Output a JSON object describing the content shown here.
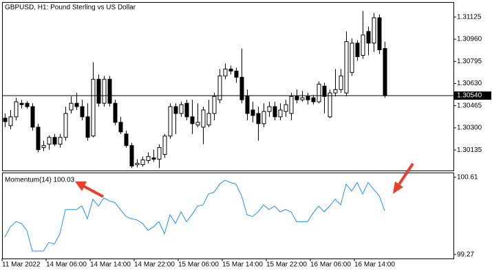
{
  "chart_data": [
    {
      "type": "candlestick",
      "title": "GBPUSD, H1:  Pound Sterling vs US Dollar",
      "categories": [
        "11 Mar 2022",
        null,
        null,
        null,
        null,
        null,
        null,
        null,
        "14 Mar 06:00",
        null,
        null,
        null,
        null,
        null,
        null,
        null,
        "14 Mar 14:00",
        null,
        null,
        null,
        null,
        null,
        null,
        null,
        "14 Mar 22:00",
        null,
        null,
        null,
        null,
        null,
        null,
        null,
        "15 Mar 06:00",
        null,
        null,
        null,
        null,
        null,
        null,
        null,
        "15 Mar 14:00",
        null,
        null,
        null,
        null,
        null,
        null,
        null,
        "15 Mar 22:00",
        null,
        null,
        null,
        null,
        null,
        null,
        null,
        "16 Mar 06:00",
        null,
        null,
        null,
        null,
        null,
        null,
        null,
        "16 Mar 14:00",
        null,
        null,
        null,
        null,
        null
      ],
      "open": [
        1.30372,
        1.30316,
        1.30382,
        1.30483,
        1.30483,
        1.30458,
        1.30305,
        1.30153,
        1.30178,
        1.30229,
        1.30178,
        1.30229,
        1.30433,
        1.30483,
        1.30458,
        1.30382,
        1.30239,
        1.30662,
        1.30483,
        1.30662,
        1.30483,
        1.30341,
        1.30254,
        1.30168,
        1.30025,
        1.30025,
        1.30056,
        1.30076,
        1.30066,
        1.30102,
        1.30239,
        1.30458,
        1.30407,
        1.30483,
        1.30382,
        1.30321,
        1.30305,
        1.30321,
        1.30407,
        1.30509,
        1.30687,
        1.30738,
        1.30723,
        1.30677,
        1.30534,
        1.30433,
        1.30407,
        1.30331,
        1.30422,
        1.30458,
        1.30382,
        1.30422,
        1.30407,
        1.30534,
        1.30509,
        1.30534,
        1.30524,
        1.30494,
        1.30611,
        1.30382,
        1.3056,
        1.30585,
        1.3056,
        1.30713,
        1.30931,
        1.3084,
        1.31018,
        1.30931,
        1.3112,
        1.30891
      ],
      "high": [
        1.30407,
        1.30433,
        1.30524,
        1.30509,
        1.30499,
        1.30483,
        1.30331,
        1.30204,
        1.30244,
        1.30254,
        1.30254,
        1.30458,
        1.30534,
        1.3056,
        1.30509,
        1.30483,
        1.30789,
        1.30697,
        1.30687,
        1.30687,
        1.30509,
        1.30382,
        1.3028,
        1.30188,
        1.30066,
        1.30086,
        1.30117,
        1.30137,
        1.30178,
        1.30254,
        1.30483,
        1.30483,
        1.30494,
        1.30509,
        1.30509,
        1.30483,
        1.30458,
        1.30509,
        1.3056,
        1.30738,
        1.30779,
        1.30763,
        1.30748,
        1.30891,
        1.30585,
        1.30494,
        1.30458,
        1.30483,
        1.30494,
        1.30494,
        1.30483,
        1.30509,
        1.3056,
        1.30585,
        1.30575,
        1.3056,
        1.30545,
        1.30646,
        1.30636,
        1.30585,
        1.30738,
        1.30738,
        1.31018,
        1.30967,
        1.30952,
        1.31171,
        1.31054,
        1.31155,
        1.31145,
        1.30942
      ],
      "low": [
        1.30305,
        1.3029,
        1.30356,
        1.30443,
        1.30443,
        1.3028,
        1.30117,
        1.30127,
        1.30137,
        1.30163,
        1.30153,
        1.30204,
        1.30407,
        1.30433,
        1.30356,
        1.30204,
        1.30229,
        1.30458,
        1.30458,
        1.30458,
        1.30321,
        1.30254,
        1.30153,
        1.3,
        1.30005,
        1.3001,
        1.30036,
        1.30046,
        1.3,
        1.30076,
        1.30219,
        1.30254,
        1.30382,
        1.30356,
        1.30254,
        1.30305,
        1.30178,
        1.30305,
        1.30356,
        1.30483,
        1.30662,
        1.30697,
        1.30636,
        1.30483,
        1.30356,
        1.30341,
        1.30204,
        1.30305,
        1.30382,
        1.30356,
        1.30356,
        1.30382,
        1.30356,
        1.30483,
        1.30494,
        1.30473,
        1.30473,
        1.30483,
        1.30407,
        1.30372,
        1.30534,
        1.3056,
        1.30534,
        1.30687,
        1.30799,
        1.30814,
        1.3084,
        1.30865,
        1.3085,
        1.30524
      ],
      "close": [
        1.30346,
        1.30382,
        1.30494,
        1.30473,
        1.30458,
        1.30305,
        1.30137,
        1.30168,
        1.30229,
        1.30178,
        1.30229,
        1.30407,
        1.30483,
        1.30458,
        1.30382,
        1.30229,
        1.30662,
        1.30483,
        1.30662,
        1.30483,
        1.30341,
        1.3027,
        1.30168,
        1.30015,
        1.30036,
        1.30061,
        1.30086,
        1.30066,
        1.30153,
        1.30239,
        1.30458,
        1.30407,
        1.30473,
        1.30382,
        1.30331,
        1.30341,
        1.30433,
        1.30407,
        1.30534,
        1.30687,
        1.30738,
        1.30723,
        1.30677,
        1.30509,
        1.30407,
        1.30392,
        1.30331,
        1.30422,
        1.30458,
        1.30382,
        1.30433,
        1.30473,
        1.30534,
        1.30509,
        1.30524,
        1.30509,
        1.30494,
        1.30626,
        1.30534,
        1.3056,
        1.30585,
        1.30687,
        1.30942,
        1.30931,
        1.3083,
        1.30992,
        1.30931,
        1.3112,
        1.30881,
        1.3054
      ],
      "up_color": "#ffffff",
      "down_color": "#000000",
      "ylim": [
        1.29982,
        1.31232
      ],
      "yticks": [
        1.31125,
        {
          "value": 1.3096,
          "label": "1.30960"
        },
        1.30795,
        {
          "value": 1.3063,
          "label": "1.30630"
        },
        1.30465,
        {
          "value": 1.303,
          "label": "1.30300"
        },
        1.30135
      ],
      "current_price": {
        "value": 1.3054,
        "label": "1.30540"
      }
    },
    {
      "type": "line",
      "title": "Momentum(14) 100.03",
      "color": "#1e90ff",
      "values": [
        99.57,
        99.75,
        99.84,
        99.81,
        99.69,
        99.33,
        99.33,
        99.33,
        99.48,
        99.45,
        99.63,
        100.05,
        100.05,
        100.05,
        100.11,
        99.89,
        100.23,
        100.11,
        100.25,
        100.2,
        100.17,
        100.05,
        99.93,
        99.89,
        99.87,
        99.81,
        99.69,
        99.75,
        99.84,
        99.63,
        99.96,
        99.81,
        100.01,
        99.84,
        99.96,
        100.11,
        100.13,
        100.32,
        100.35,
        100.49,
        100.56,
        100.52,
        100.49,
        100.29,
        99.96,
        99.93,
        100.01,
        100.13,
        100.05,
        100.11,
        100.01,
        100.05,
        100.01,
        99.84,
        99.84,
        99.84,
        99.99,
        100.11,
        100.01,
        100.11,
        100.23,
        100.13,
        100.49,
        100.37,
        100.52,
        100.32,
        100.52,
        100.4,
        100.29,
        100.03
      ],
      "ylim": [
        99.2,
        100.68
      ],
      "yticks": [
        100.61,
        99.27
      ]
    }
  ]
}
